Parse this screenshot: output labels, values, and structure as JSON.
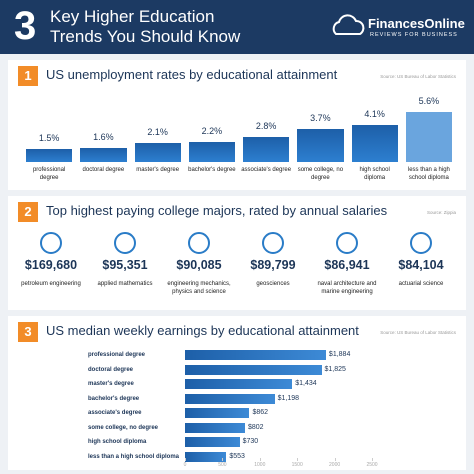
{
  "header": {
    "number": "3",
    "title": "Key Higher Education Trends You Should Know"
  },
  "logo": {
    "name": "FinancesOnline",
    "tagline": "REVIEWS FOR BUSINESS"
  },
  "chart_data": [
    {
      "type": "bar",
      "number": "1",
      "title": "US unemployment rates by educational attainment",
      "source": "Source: US Bureau of Labor Statistics",
      "categories": [
        "professional degree",
        "doctoral degree",
        "master's degree",
        "bachelor's degree",
        "associate's degree",
        "some college, no degree",
        "high school diploma",
        "less than a high school diploma"
      ],
      "values": [
        1.5,
        1.6,
        2.1,
        2.2,
        2.8,
        3.7,
        4.1,
        5.6
      ],
      "value_labels": [
        "1.5%",
        "1.6%",
        "2.1%",
        "2.2%",
        "2.8%",
        "3.7%",
        "4.1%",
        "5.6%"
      ],
      "color": "#1d5fa8",
      "highlight_color": "#6aa5de"
    },
    {
      "type": "stats",
      "number": "2",
      "title": "Top highest paying college majors, rated by annual salaries",
      "source": "Source: Zippia",
      "categories": [
        "petroleum engineering",
        "applied mathematics",
        "engineering mechanics, physics and science",
        "geosciences",
        "naval architecture and marine engineering",
        "actuarial science"
      ],
      "values": [
        169680,
        95351,
        90085,
        89799,
        86941,
        84104
      ],
      "value_labels": [
        "$169,680",
        "$95,351",
        "$90,085",
        "$89,799",
        "$86,941",
        "$84,104"
      ],
      "color": "#2a7cc7"
    },
    {
      "type": "hbar",
      "number": "3",
      "title": "US median weekly earnings by educational attainment",
      "source": "Source: US Bureau of Labor Statistics",
      "categories": [
        "professional degree",
        "doctoral degree",
        "master's degree",
        "bachelor's degree",
        "associate's degree",
        "some college, no degree",
        "high school diploma",
        "less than a high school diploma"
      ],
      "values": [
        1884,
        1825,
        1434,
        1198,
        862,
        802,
        730,
        553
      ],
      "value_labels": [
        "$1,884",
        "$1,825",
        "$1,434",
        "$1,198",
        "$862",
        "$802",
        "$730",
        "$553"
      ],
      "xlim": [
        0,
        2500
      ],
      "xticks": [
        0,
        500,
        1000,
        1500,
        2000,
        2500
      ],
      "color": "#1d5fa8"
    }
  ]
}
